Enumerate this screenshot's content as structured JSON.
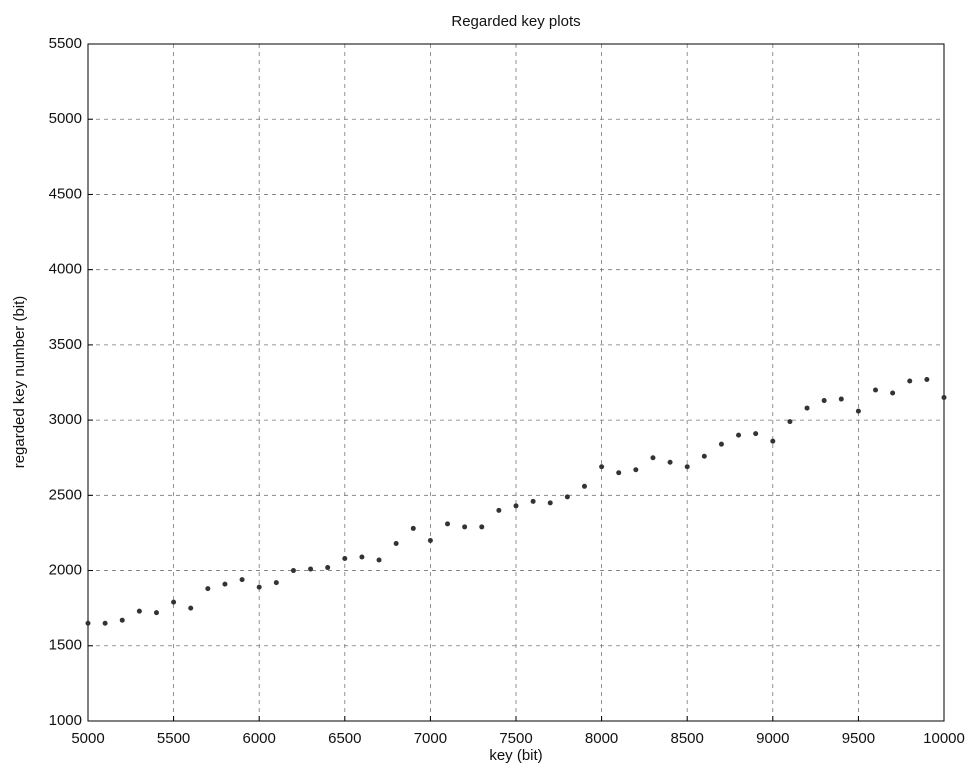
{
  "chart_data": {
    "type": "scatter",
    "title": "Regarded key plots",
    "x_label": "key (bit)",
    "y_label": "regarded key number (bit)",
    "x": [
      5000,
      5100,
      5200,
      5300,
      5400,
      5500,
      5600,
      5700,
      5800,
      5900,
      6000,
      6100,
      6200,
      6300,
      6400,
      6500,
      6600,
      6700,
      6800,
      6900,
      7000,
      7100,
      7200,
      7300,
      7400,
      7500,
      7600,
      7700,
      7800,
      7900,
      8000,
      8100,
      8200,
      8300,
      8400,
      8500,
      8600,
      8700,
      8800,
      8900,
      9000,
      9100,
      9200,
      9300,
      9400,
      9500,
      9600,
      9700,
      9800,
      9900,
      10000
    ],
    "values": [
      1650,
      1650,
      1670,
      1730,
      1720,
      1790,
      1750,
      1880,
      1910,
      1940,
      1890,
      1920,
      2000,
      2010,
      2020,
      2080,
      2090,
      2070,
      2180,
      2280,
      2200,
      2310,
      2290,
      2290,
      2400,
      2430,
      2460,
      2450,
      2490,
      2560,
      2690,
      2650,
      2670,
      2750,
      2720,
      2690,
      2760,
      2840,
      2900,
      2910,
      2860,
      2990,
      3080,
      3130,
      3140,
      3060,
      3200,
      3180,
      3260,
      3270,
      3150
    ],
    "color": "#333333",
    "xlim": [
      5000,
      10000
    ],
    "xticks": [
      5000,
      5500,
      6000,
      6500,
      7000,
      7500,
      8000,
      8500,
      9000,
      9500,
      10000
    ],
    "ylim": [
      1000,
      5500
    ],
    "yticks": [
      1000,
      1500,
      2000,
      2500,
      3000,
      3500,
      4000,
      4500,
      5000,
      5500
    ],
    "grid": true
  }
}
